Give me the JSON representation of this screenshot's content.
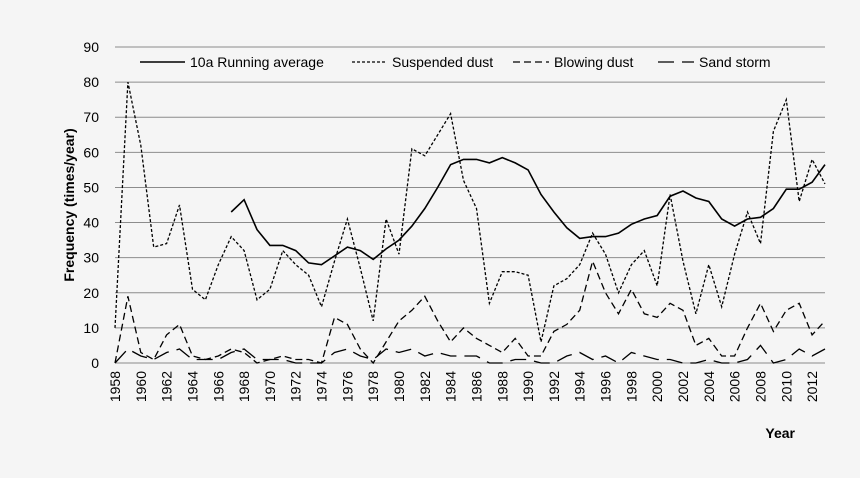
{
  "chart_data": {
    "type": "line",
    "title": "",
    "xlabel": "Year",
    "ylabel": "Frequency (times/year)",
    "ylim": [
      0,
      90
    ],
    "yticks": [
      0,
      10,
      20,
      30,
      40,
      50,
      60,
      70,
      80,
      90
    ],
    "xlim": [
      1958,
      2013
    ],
    "xticks": [
      1958,
      1960,
      1962,
      1964,
      1966,
      1968,
      1970,
      1972,
      1974,
      1976,
      1978,
      1980,
      1982,
      1984,
      1986,
      1988,
      1990,
      1992,
      1994,
      1996,
      1998,
      2000,
      2002,
      2004,
      2006,
      2008,
      2010,
      2012
    ],
    "grid": "horizontal",
    "legend_position": "top",
    "series": [
      {
        "name": "10a Running average",
        "style": "solid",
        "x": [
          1967,
          1968,
          1969,
          1970,
          1971,
          1972,
          1973,
          1974,
          1975,
          1976,
          1977,
          1978,
          1979,
          1980,
          1981,
          1982,
          1983,
          1984,
          1985,
          1986,
          1987,
          1988,
          1989,
          1990,
          1991,
          1992,
          1993,
          1994,
          1995,
          1996,
          1997,
          1998,
          1999,
          2000,
          2001,
          2002,
          2003,
          2004,
          2005,
          2006,
          2007,
          2008,
          2009,
          2010,
          2011,
          2012,
          2013
        ],
        "values": [
          43,
          46.5,
          38,
          33.5,
          33.5,
          32,
          28.5,
          28,
          30.5,
          33,
          32,
          29.5,
          32.5,
          35,
          39,
          44,
          50,
          56.5,
          58,
          58,
          57,
          58.5,
          57,
          55,
          48,
          43,
          38.5,
          35.5,
          36,
          36,
          37,
          39.5,
          41,
          42,
          47.5,
          49,
          47,
          46,
          41,
          39,
          41,
          41.5,
          44,
          49.5,
          49.5,
          51.5,
          56.5
        ]
      },
      {
        "name": "Suspended dust",
        "style": "short-dash",
        "x": [
          1958,
          1959,
          1960,
          1961,
          1962,
          1963,
          1964,
          1965,
          1966,
          1967,
          1968,
          1969,
          1970,
          1971,
          1972,
          1973,
          1974,
          1975,
          1976,
          1977,
          1978,
          1979,
          1980,
          1981,
          1982,
          1983,
          1984,
          1985,
          1986,
          1987,
          1988,
          1989,
          1990,
          1991,
          1992,
          1993,
          1994,
          1995,
          1996,
          1997,
          1998,
          1999,
          2000,
          2001,
          2002,
          2003,
          2004,
          2005,
          2006,
          2007,
          2008,
          2009,
          2010,
          2011,
          2012,
          2013
        ],
        "values": [
          10,
          80,
          62,
          33,
          34,
          45,
          21,
          18,
          28,
          36,
          32,
          18,
          21,
          32,
          28,
          25,
          16,
          29,
          41,
          27,
          12,
          41,
          31,
          61,
          59,
          65,
          71,
          52,
          44,
          17,
          26,
          26,
          25,
          6,
          22,
          24,
          28,
          37,
          31,
          20,
          28,
          32,
          22,
          48,
          29,
          14,
          28,
          16,
          31,
          43,
          34,
          66,
          75,
          46,
          58,
          51
        ]
      },
      {
        "name": "Blowing dust",
        "style": "dash",
        "x": [
          1958,
          1959,
          1960,
          1961,
          1962,
          1963,
          1964,
          1965,
          1966,
          1967,
          1968,
          1969,
          1970,
          1971,
          1972,
          1973,
          1974,
          1975,
          1976,
          1977,
          1978,
          1979,
          1980,
          1981,
          1982,
          1983,
          1984,
          1985,
          1986,
          1987,
          1988,
          1989,
          1990,
          1991,
          1992,
          1993,
          1994,
          1995,
          1996,
          1997,
          1998,
          1999,
          2000,
          2001,
          2002,
          2003,
          2004,
          2005,
          2006,
          2007,
          2008,
          2009,
          2010,
          2011,
          2012,
          2013
        ],
        "values": [
          0,
          19,
          3,
          1,
          8,
          11,
          2,
          1,
          2,
          4,
          3,
          0,
          1,
          2,
          1,
          1,
          0,
          13,
          11,
          4,
          0,
          6,
          12,
          15,
          19,
          12,
          6,
          10,
          7,
          5,
          3,
          7,
          2,
          2,
          9,
          11,
          15,
          29,
          20,
          14,
          21,
          14,
          13,
          17,
          15,
          5,
          7,
          2,
          2,
          10,
          17,
          9,
          15,
          17,
          8,
          12
        ]
      },
      {
        "name": "Sand storm",
        "style": "long-dash",
        "x": [
          1958,
          1959,
          1960,
          1961,
          1962,
          1963,
          1964,
          1965,
          1966,
          1967,
          1968,
          1969,
          1970,
          1971,
          1972,
          1973,
          1974,
          1975,
          1976,
          1977,
          1978,
          1979,
          1980,
          1981,
          1982,
          1983,
          1984,
          1985,
          1986,
          1987,
          1988,
          1989,
          1990,
          1991,
          1992,
          1993,
          1994,
          1995,
          1996,
          1997,
          1998,
          1999,
          2000,
          2001,
          2002,
          2003,
          2004,
          2005,
          2006,
          2007,
          2008,
          2009,
          2010,
          2011,
          2012,
          2013
        ],
        "values": [
          0,
          4,
          2,
          1,
          3,
          4,
          1,
          1,
          1,
          3,
          4,
          1,
          1,
          1,
          0,
          0,
          0,
          3,
          4,
          2,
          1,
          4,
          3,
          4,
          2,
          3,
          2,
          2,
          2,
          0,
          0,
          1,
          1,
          0,
          0,
          2,
          3,
          1,
          2,
          0,
          3,
          2,
          1,
          1,
          0,
          0,
          1,
          0,
          0,
          1,
          5,
          0,
          1,
          4,
          2,
          4
        ]
      }
    ]
  }
}
